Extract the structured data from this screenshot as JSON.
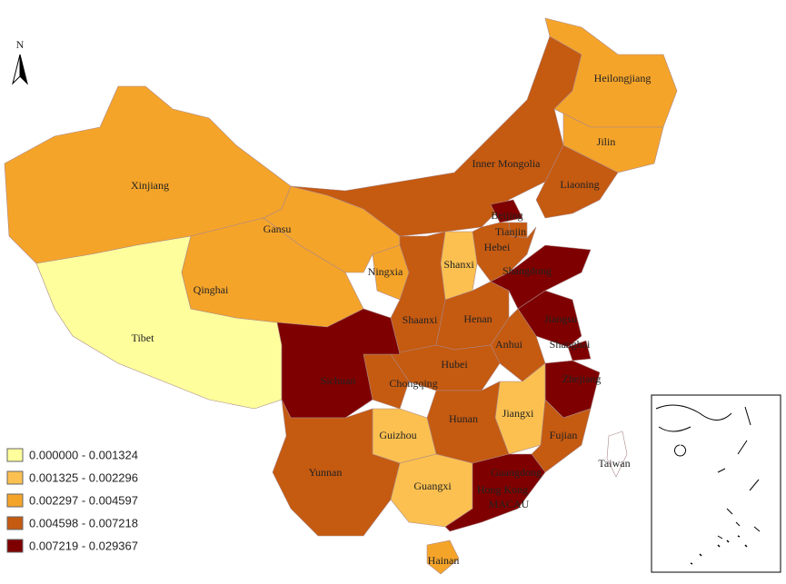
{
  "north_arrow": "N",
  "regions": [
    {
      "name": "Xinjiang",
      "color": "#f5a42a"
    },
    {
      "name": "Tibet",
      "color": "#fefe9c"
    },
    {
      "name": "Qinghai",
      "color": "#f5a42a"
    },
    {
      "name": "Gansu",
      "color": "#f5a42a"
    },
    {
      "name": "Inner Mongolia",
      "color": "#c55a11"
    },
    {
      "name": "Heilongjiang",
      "color": "#f5a42a"
    },
    {
      "name": "Jilin",
      "color": "#f5a42a"
    },
    {
      "name": "Liaoning",
      "color": "#c55a11"
    },
    {
      "name": "Beijing",
      "color": "#7f0000"
    },
    {
      "name": "Tianjin",
      "color": "#c55a11"
    },
    {
      "name": "Hebei",
      "color": "#c55a11"
    },
    {
      "name": "Shanxi",
      "color": "#fbc050"
    },
    {
      "name": "Ningxia",
      "color": "#f5a42a"
    },
    {
      "name": "Shaanxi",
      "color": "#c55a11"
    },
    {
      "name": "Henan",
      "color": "#c55a11"
    },
    {
      "name": "Shangdong",
      "color": "#7f0000"
    },
    {
      "name": "Jiangsu",
      "color": "#7f0000"
    },
    {
      "name": "Shanghai",
      "color": "#7f0000"
    },
    {
      "name": "Anhui",
      "color": "#c55a11"
    },
    {
      "name": "Hubei",
      "color": "#c55a11"
    },
    {
      "name": "Chongqing",
      "color": "#c55a11"
    },
    {
      "name": "Sichuan",
      "color": "#7f0000"
    },
    {
      "name": "Zhejiang",
      "color": "#7f0000"
    },
    {
      "name": "Jiangxi",
      "color": "#fbc050"
    },
    {
      "name": "Hunan",
      "color": "#c55a11"
    },
    {
      "name": "Fujian",
      "color": "#c55a11"
    },
    {
      "name": "Guizhou",
      "color": "#fbc050"
    },
    {
      "name": "Yunnan",
      "color": "#c55a11"
    },
    {
      "name": "Guangxi",
      "color": "#fbc050"
    },
    {
      "name": "Guangdong",
      "color": "#7f0000"
    },
    {
      "name": "Hainan",
      "color": "#f5a42a"
    },
    {
      "name": "Taiwan",
      "color": "#ffffff"
    }
  ],
  "other_labels": [
    "Hong Kong",
    "MACAU"
  ],
  "legend": [
    {
      "label": "0.000000 - 0.001324",
      "color": "#fefe9c"
    },
    {
      "label": "0.001325 - 0.002296",
      "color": "#fbc050"
    },
    {
      "label": "0.002297 - 0.004597",
      "color": "#f5a42a"
    },
    {
      "label": "0.004598 - 0.007218",
      "color": "#c55a11"
    },
    {
      "label": "0.007219 - 0.029367",
      "color": "#7f0000"
    }
  ]
}
